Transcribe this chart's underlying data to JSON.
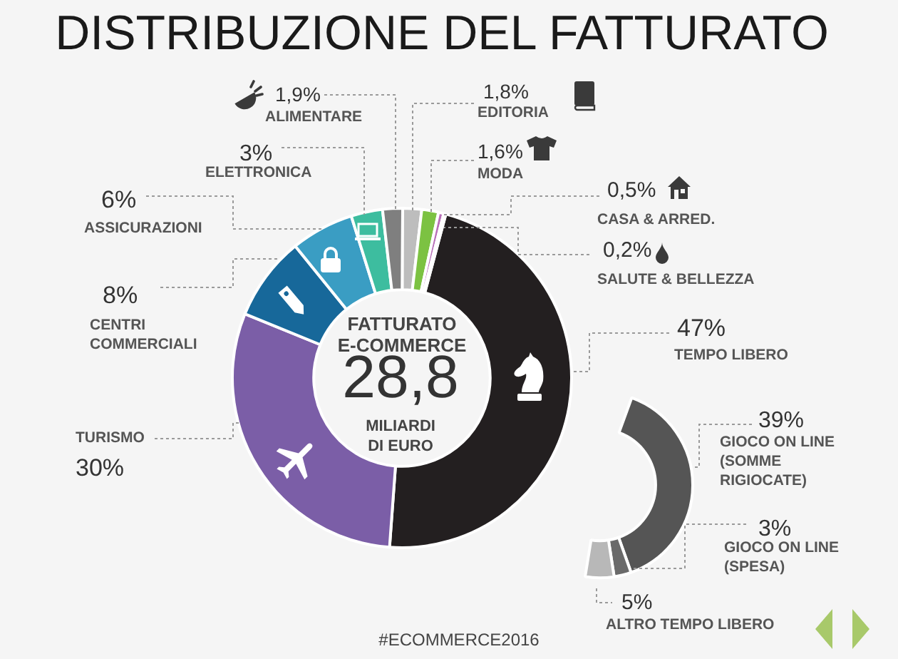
{
  "chart_data": [
    {
      "type": "donut",
      "title": "DISTRIBUZIONE DEL FATTURATO",
      "categories": [
        "TEMPO LIBERO",
        "TURISMO",
        "CENTRI COMMERCIALI",
        "ASSICURAZIONI",
        "ELETTRONICA",
        "ALIMENTARE",
        "EDITORIA",
        "MODA",
        "CASA & ARRED.",
        "SALUTE & BELLEZZA"
      ],
      "values": [
        47,
        30,
        8,
        6,
        3,
        1.9,
        1.8,
        1.6,
        0.5,
        0.2
      ],
      "value_labels": [
        "47%",
        "30%",
        "8%",
        "6%",
        "3%",
        "1,9%",
        "1,8%",
        "1,6%",
        "0,5%",
        "0,2%"
      ],
      "colors": [
        "#231f20",
        "#7b5ea7",
        "#17689a",
        "#3a9dc3",
        "#3dbd9f",
        "#7f7f7f",
        "#bdbdbd",
        "#7cc242",
        "#b86fb8",
        "#e6a6d6"
      ],
      "annotations": [
        "FATTURATO E-COMMERCE",
        "28,8",
        "MILIARDI DI EURO",
        "#ECOMMERCE2016"
      ]
    },
    {
      "type": "donut",
      "categories": [
        "GIOCO ON LINE (SOMME RIGIOCATE)",
        "GIOCO ON LINE (SPESA)",
        "ALTRO TEMPO LIBERO"
      ],
      "values": [
        39,
        3,
        5
      ],
      "value_labels": [
        "39%",
        "3%",
        "5%"
      ],
      "colors": [
        "#555555",
        "#6a6a6a",
        "#b8b8b8"
      ]
    }
  ]
}
